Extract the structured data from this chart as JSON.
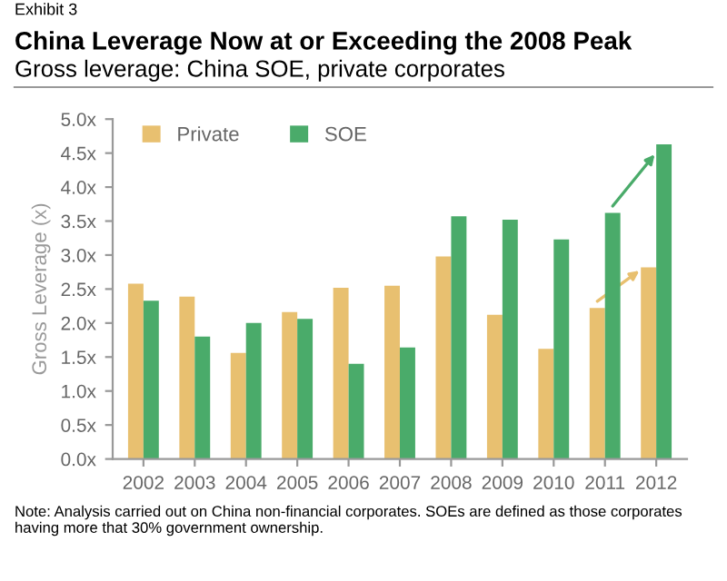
{
  "chart_data": {
    "type": "bar",
    "title": "China Leverage Now at or Exceeding the 2008 Peak",
    "subtitle": "Gross leverage: China SOE, private corporates",
    "ylabel": "Gross Leverage (x)",
    "annotations": [
      "Exhibit 3",
      "Note: Analysis carried out on China non-financial corporates. SOEs are defined as those corporates having more that 30% government ownership."
    ],
    "categories": [
      "2002",
      "2003",
      "2004",
      "2005",
      "2006",
      "2007",
      "2008",
      "2009",
      "2010",
      "2011",
      "2012"
    ],
    "series": [
      {
        "name": "Private",
        "color": "#e8c070",
        "values": [
          2.58,
          2.39,
          1.56,
          2.16,
          2.52,
          2.55,
          2.98,
          2.12,
          1.62,
          2.22,
          2.82
        ]
      },
      {
        "name": "SOE",
        "color": "#4aab6a",
        "values": [
          2.33,
          1.8,
          2.0,
          2.06,
          1.4,
          1.64,
          3.57,
          3.52,
          3.23,
          3.62,
          4.63
        ]
      }
    ],
    "ylim": [
      0,
      5
    ],
    "yticks": [
      {
        "value": 0,
        "label": "0.0x"
      },
      {
        "value": 0.5,
        "label": "0.5x"
      },
      {
        "value": 1,
        "label": "1.0x"
      },
      {
        "value": 1.5,
        "label": "1.5x"
      },
      {
        "value": 2,
        "label": "2.0x"
      },
      {
        "value": 2.5,
        "label": "2.5x"
      },
      {
        "value": 3,
        "label": "3.0x"
      },
      {
        "value": 3.5,
        "label": "3.5x"
      },
      {
        "value": 4,
        "label": "4.0x"
      },
      {
        "value": 4.5,
        "label": "4.5x"
      },
      {
        "value": 5,
        "label": "5.0x"
      }
    ],
    "grid": false,
    "legend": "top left"
  }
}
